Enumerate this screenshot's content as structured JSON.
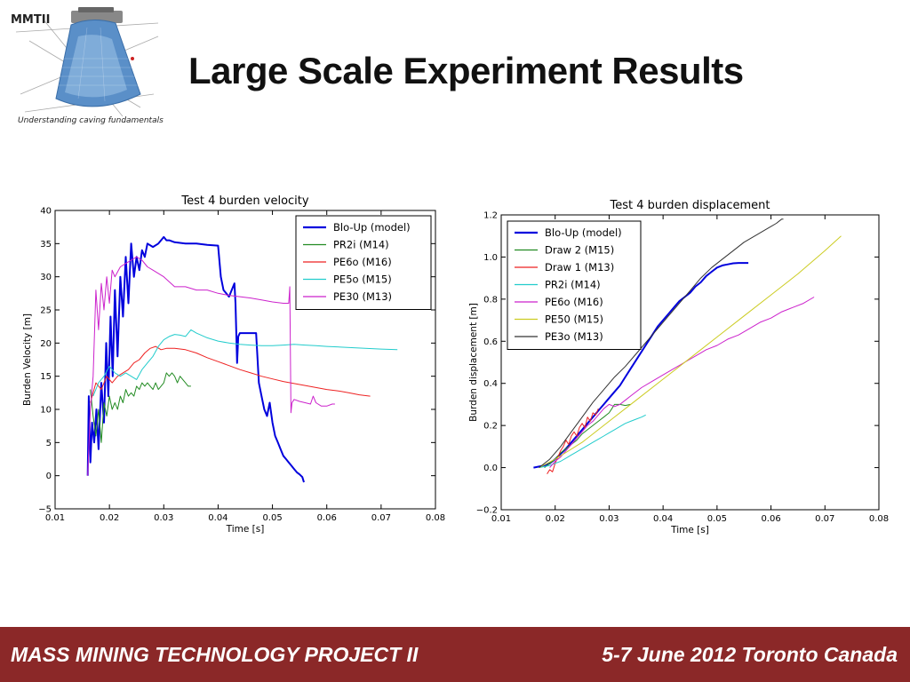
{
  "header": {
    "logo_text": "MMTII",
    "logo_tagline": "Understanding caving fundamentals",
    "title": "Large Scale Experiment Results"
  },
  "footer": {
    "left": "MASS MINING TECHNOLOGY PROJECT II",
    "right": "5-7 June 2012 Toronto Canada",
    "bg_color": "#8b2828"
  },
  "chart_data": [
    {
      "type": "line",
      "title": "Test 4 burden velocity",
      "xlabel": "Time [s]",
      "ylabel": "Burden Velocity [m]",
      "xlim": [
        0.01,
        0.08
      ],
      "ylim": [
        -5,
        40
      ],
      "xticks": [
        "0.01",
        "0.02",
        "0.03",
        "0.04",
        "0.05",
        "0.06",
        "0.07",
        "0.08"
      ],
      "yticks": [
        "−5",
        "0",
        "5",
        "10",
        "15",
        "20",
        "25",
        "30",
        "35",
        "40"
      ],
      "grid": false,
      "legend": "top-right",
      "series": [
        {
          "name": "Blo-Up (model)",
          "color": "#0000dd",
          "width": 2,
          "x": [
            0.016,
            0.0162,
            0.0165,
            0.0168,
            0.0172,
            0.0176,
            0.018,
            0.0185,
            0.019,
            0.0194,
            0.0198,
            0.0202,
            0.0206,
            0.021,
            0.0215,
            0.022,
            0.0225,
            0.023,
            0.0235,
            0.024,
            0.0245,
            0.025,
            0.0255,
            0.026,
            0.0265,
            0.027,
            0.028,
            0.029,
            0.03,
            0.0305,
            0.031,
            0.032,
            0.034,
            0.036,
            0.038,
            0.04,
            0.0405,
            0.041,
            0.042,
            0.043,
            0.0432,
            0.0435,
            0.0437,
            0.044,
            0.045,
            0.046,
            0.047,
            0.0475,
            0.048,
            0.0485,
            0.049,
            0.0495,
            0.05,
            0.0505,
            0.051,
            0.0515,
            0.052,
            0.0525,
            0.053,
            0.0535,
            0.054,
            0.0545,
            0.055,
            0.0555,
            0.0558
          ],
          "y": [
            0,
            12,
            2,
            8,
            5,
            10,
            4,
            14,
            8,
            20,
            12,
            24,
            15,
            28,
            18,
            30,
            24,
            33,
            26,
            35,
            30,
            33,
            31,
            34,
            33,
            35,
            34.5,
            35,
            36,
            35.5,
            35.5,
            35.2,
            35,
            35,
            34.8,
            34.7,
            30,
            28,
            27,
            29,
            26,
            17,
            21,
            21.5,
            21.5,
            21.5,
            21.5,
            14,
            12,
            10,
            9,
            11,
            8,
            6,
            5,
            4,
            3,
            2.5,
            2,
            1.5,
            1,
            0.5,
            0.2,
            -0.2,
            -1
          ]
        },
        {
          "name": "PR2i (M14)",
          "color": "#228b22",
          "width": 1,
          "x": [
            0.0165,
            0.017,
            0.0175,
            0.018,
            0.0185,
            0.019,
            0.0195,
            0.02,
            0.0205,
            0.021,
            0.0215,
            0.022,
            0.0225,
            0.023,
            0.0235,
            0.024,
            0.0245,
            0.025,
            0.0255,
            0.026,
            0.0265,
            0.027,
            0.0275,
            0.028,
            0.0285,
            0.029,
            0.0295,
            0.03,
            0.0305,
            0.031,
            0.0315,
            0.032,
            0.0325,
            0.033,
            0.0335,
            0.034,
            0.0345,
            0.035
          ],
          "y": [
            13,
            9,
            6,
            10,
            5,
            11,
            9,
            12,
            10,
            11,
            10,
            12,
            11,
            13,
            12,
            12.5,
            12,
            13.5,
            13,
            14,
            13.5,
            14,
            13.5,
            13,
            14,
            13,
            13.5,
            14,
            15.5,
            15,
            15.5,
            15,
            14,
            15,
            14.5,
            14,
            13.5,
            13.5
          ]
        },
        {
          "name": "PE6o (M16)",
          "color": "#ee2222",
          "width": 1,
          "x": [
            0.0165,
            0.0175,
            0.0185,
            0.0195,
            0.0205,
            0.0215,
            0.0225,
            0.0235,
            0.0245,
            0.0255,
            0.0265,
            0.0275,
            0.0285,
            0.0295,
            0.0305,
            0.032,
            0.034,
            0.036,
            0.038,
            0.04,
            0.042,
            0.044,
            0.046,
            0.048,
            0.05,
            0.052,
            0.054,
            0.056,
            0.058,
            0.06,
            0.062,
            0.064,
            0.066,
            0.068
          ],
          "y": [
            11,
            14,
            13,
            15,
            14,
            15,
            15.5,
            16,
            17,
            17.5,
            18.5,
            19.2,
            19.5,
            19,
            19.2,
            19.2,
            19,
            18.5,
            17.8,
            17.2,
            16.6,
            16,
            15.5,
            15,
            14.6,
            14.2,
            13.9,
            13.6,
            13.3,
            13,
            12.8,
            12.5,
            12.2,
            12
          ]
        },
        {
          "name": "PE5o (M15)",
          "color": "#22cccc",
          "width": 1,
          "x": [
            0.017,
            0.018,
            0.019,
            0.02,
            0.021,
            0.022,
            0.023,
            0.024,
            0.025,
            0.026,
            0.027,
            0.028,
            0.029,
            0.03,
            0.031,
            0.032,
            0.033,
            0.034,
            0.035,
            0.036,
            0.038,
            0.04,
            0.042,
            0.044,
            0.046,
            0.048,
            0.05,
            0.052,
            0.054,
            0.056,
            0.058,
            0.06,
            0.065,
            0.07,
            0.073
          ],
          "y": [
            12,
            14,
            15,
            16.5,
            15.5,
            15,
            15.5,
            15,
            14.5,
            16,
            17,
            18,
            19.5,
            20.5,
            21,
            21.3,
            21.2,
            21,
            22,
            21.5,
            20.8,
            20.3,
            20,
            19.8,
            19.7,
            19.6,
            19.6,
            19.7,
            19.8,
            19.7,
            19.6,
            19.5,
            19.3,
            19.1,
            19
          ]
        },
        {
          "name": "PE30 (M13)",
          "color": "#cc22cc",
          "width": 1,
          "x": [
            0.016,
            0.0165,
            0.017,
            0.0175,
            0.018,
            0.0185,
            0.019,
            0.0195,
            0.02,
            0.0205,
            0.021,
            0.022,
            0.023,
            0.024,
            0.025,
            0.026,
            0.027,
            0.028,
            0.03,
            0.032,
            0.034,
            0.036,
            0.038,
            0.04,
            0.042,
            0.044,
            0.046,
            0.048,
            0.05,
            0.052,
            0.053,
            0.0532,
            0.0534,
            0.0536,
            0.054,
            0.055,
            0.056,
            0.057,
            0.0575,
            0.058,
            0.059,
            0.06,
            0.061,
            0.0615
          ],
          "y": [
            0,
            10,
            15,
            28,
            22,
            29,
            25,
            30,
            26,
            31,
            30,
            31.5,
            32,
            32.5,
            33,
            32.5,
            31.5,
            31,
            30,
            28.5,
            28.5,
            28,
            28,
            27.5,
            27.2,
            27,
            26.8,
            26.5,
            26.2,
            26,
            26,
            28.5,
            9.5,
            11,
            11.5,
            11.2,
            11,
            10.8,
            12,
            11,
            10.5,
            10.5,
            10.8,
            10.8
          ]
        }
      ]
    },
    {
      "type": "line",
      "title": "Test 4 burden displacement",
      "xlabel": "Time [s]",
      "ylabel": "Burden displacement [m]",
      "xlim": [
        0.01,
        0.08
      ],
      "ylim": [
        -0.2,
        1.2
      ],
      "xticks": [
        "0.01",
        "0.02",
        "0.03",
        "0.04",
        "0.05",
        "0.06",
        "0.07",
        "0.08"
      ],
      "yticks": [
        "−0.2",
        "0.0",
        "0.2",
        "0.4",
        "0.6",
        "0.8",
        "1.0",
        "1.2"
      ],
      "grid": false,
      "legend": "top-left",
      "series": [
        {
          "name": "Blo-Up (model)",
          "color": "#0000dd",
          "width": 2,
          "x": [
            0.016,
            0.017,
            0.018,
            0.019,
            0.02,
            0.021,
            0.022,
            0.023,
            0.024,
            0.025,
            0.026,
            0.027,
            0.028,
            0.029,
            0.03,
            0.031,
            0.032,
            0.033,
            0.034,
            0.035,
            0.036,
            0.037,
            0.038,
            0.039,
            0.04,
            0.041,
            0.042,
            0.043,
            0.044,
            0.045,
            0.046,
            0.047,
            0.048,
            0.049,
            0.05,
            0.051,
            0.052,
            0.053,
            0.054,
            0.055,
            0.0558
          ],
          "y": [
            0.0,
            0.005,
            0.01,
            0.02,
            0.04,
            0.065,
            0.09,
            0.12,
            0.15,
            0.18,
            0.21,
            0.24,
            0.27,
            0.3,
            0.33,
            0.36,
            0.39,
            0.43,
            0.47,
            0.51,
            0.55,
            0.59,
            0.63,
            0.67,
            0.7,
            0.73,
            0.76,
            0.79,
            0.81,
            0.83,
            0.86,
            0.88,
            0.91,
            0.93,
            0.95,
            0.96,
            0.965,
            0.97,
            0.972,
            0.972,
            0.972
          ]
        },
        {
          "name": "Draw 2 (M15)",
          "color": "#228b22",
          "width": 1,
          "x": [
            0.018,
            0.019,
            0.02,
            0.021,
            0.022,
            0.023,
            0.024,
            0.025,
            0.026,
            0.027,
            0.028,
            0.029,
            0.03,
            0.0305,
            0.031,
            0.032,
            0.033,
            0.034
          ],
          "y": [
            0.0,
            0.02,
            0.04,
            0.07,
            0.09,
            0.11,
            0.13,
            0.16,
            0.18,
            0.2,
            0.22,
            0.24,
            0.26,
            0.28,
            0.3,
            0.3,
            0.295,
            0.3
          ]
        },
        {
          "name": "Draw 1 (M13)",
          "color": "#ee2222",
          "width": 1,
          "x": [
            0.0185,
            0.019,
            0.0195,
            0.02,
            0.0205,
            0.021,
            0.0215,
            0.022,
            0.0225,
            0.023,
            0.0235,
            0.024,
            0.0245,
            0.025,
            0.0255,
            0.026,
            0.0265,
            0.027,
            0.0275,
            0.028
          ],
          "y": [
            -0.03,
            -0.01,
            -0.02,
            0.02,
            0.05,
            0.08,
            0.1,
            0.13,
            0.11,
            0.15,
            0.17,
            0.15,
            0.19,
            0.21,
            0.19,
            0.24,
            0.22,
            0.26,
            0.25,
            0.28
          ]
        },
        {
          "name": "PR2i (M14)",
          "color": "#22cccc",
          "width": 1,
          "x": [
            0.017,
            0.018,
            0.019,
            0.02,
            0.021,
            0.022,
            0.023,
            0.024,
            0.025,
            0.026,
            0.027,
            0.028,
            0.029,
            0.03,
            0.031,
            0.032,
            0.033,
            0.034,
            0.035,
            0.036,
            0.0368
          ],
          "y": [
            0.0,
            0.005,
            0.01,
            0.02,
            0.03,
            0.045,
            0.06,
            0.075,
            0.09,
            0.105,
            0.12,
            0.135,
            0.15,
            0.165,
            0.18,
            0.195,
            0.21,
            0.22,
            0.23,
            0.24,
            0.25
          ]
        },
        {
          "name": "PE6o (M16)",
          "color": "#cc22cc",
          "width": 1,
          "x": [
            0.019,
            0.02,
            0.021,
            0.022,
            0.023,
            0.024,
            0.025,
            0.026,
            0.027,
            0.028,
            0.029,
            0.03,
            0.031,
            0.032,
            0.033,
            0.034,
            0.036,
            0.038,
            0.04,
            0.042,
            0.044,
            0.046,
            0.048,
            0.05,
            0.052,
            0.054,
            0.056,
            0.058,
            0.06,
            0.062,
            0.064,
            0.066,
            0.068
          ],
          "y": [
            0.0,
            0.03,
            0.05,
            0.08,
            0.11,
            0.14,
            0.17,
            0.2,
            0.22,
            0.25,
            0.28,
            0.3,
            0.29,
            0.3,
            0.32,
            0.34,
            0.38,
            0.41,
            0.44,
            0.47,
            0.5,
            0.53,
            0.56,
            0.58,
            0.61,
            0.63,
            0.66,
            0.69,
            0.71,
            0.74,
            0.76,
            0.78,
            0.81
          ]
        },
        {
          "name": "PE50 (M15)",
          "color": "#cccc22",
          "width": 1,
          "x": [
            0.017,
            0.02,
            0.025,
            0.03,
            0.035,
            0.04,
            0.045,
            0.05,
            0.055,
            0.06,
            0.065,
            0.07,
            0.073
          ],
          "y": [
            0.0,
            0.04,
            0.12,
            0.22,
            0.32,
            0.42,
            0.52,
            0.62,
            0.72,
            0.82,
            0.92,
            1.03,
            1.1
          ]
        },
        {
          "name": "PE3o (M13)",
          "color": "#333333",
          "width": 1,
          "x": [
            0.017,
            0.019,
            0.021,
            0.023,
            0.025,
            0.027,
            0.029,
            0.031,
            0.033,
            0.035,
            0.037,
            0.039,
            0.041,
            0.043,
            0.045,
            0.047,
            0.049,
            0.051,
            0.053,
            0.055,
            0.057,
            0.059,
            0.061,
            0.062,
            0.0623
          ],
          "y": [
            0.0,
            0.04,
            0.1,
            0.17,
            0.24,
            0.31,
            0.37,
            0.43,
            0.48,
            0.54,
            0.6,
            0.66,
            0.72,
            0.78,
            0.84,
            0.9,
            0.95,
            0.99,
            1.03,
            1.07,
            1.1,
            1.13,
            1.16,
            1.18,
            1.18
          ]
        }
      ]
    }
  ]
}
